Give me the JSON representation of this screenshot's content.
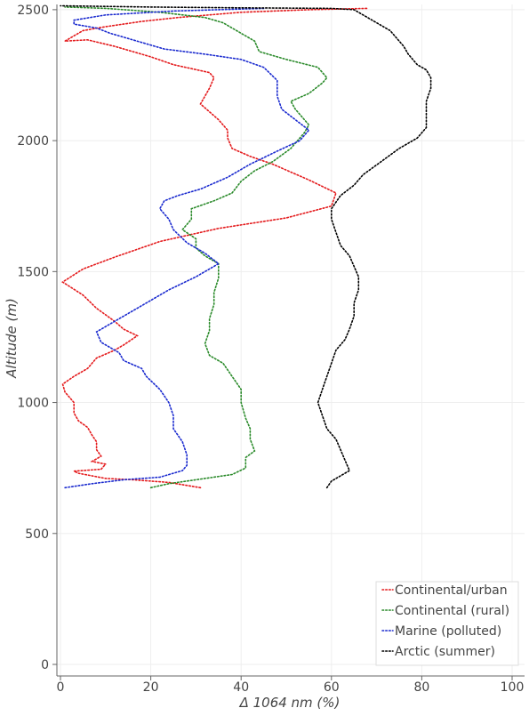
{
  "chart_data": {
    "type": "line",
    "title": "",
    "xlabel": "Δ 1064 nm (%)",
    "ylabel": "Altitude (m)",
    "xlim": [
      0,
      100
    ],
    "ylim": [
      0,
      2520
    ],
    "xticks": [
      "0",
      "20",
      "40",
      "60",
      "80",
      "100"
    ],
    "yticks": [
      "0",
      "500",
      "1000",
      "1500",
      "2000",
      "2500"
    ],
    "grid": true,
    "legend_position": "bottom-right",
    "series": [
      {
        "name": "Continental/urban",
        "color": "#e41a1c",
        "points": [
          [
            31,
            675
          ],
          [
            24,
            695
          ],
          [
            16,
            705
          ],
          [
            10,
            710
          ],
          [
            4,
            730
          ],
          [
            3,
            738
          ],
          [
            9,
            745
          ],
          [
            10,
            765
          ],
          [
            7,
            775
          ],
          [
            9,
            795
          ],
          [
            8,
            820
          ],
          [
            8,
            850
          ],
          [
            7,
            875
          ],
          [
            6,
            905
          ],
          [
            4,
            930
          ],
          [
            3,
            960
          ],
          [
            3,
            1000
          ],
          [
            1,
            1040
          ],
          [
            0.5,
            1070
          ],
          [
            3,
            1100
          ],
          [
            6,
            1130
          ],
          [
            8,
            1170
          ],
          [
            12,
            1200
          ],
          [
            14,
            1220
          ],
          [
            17,
            1255
          ],
          [
            14,
            1280
          ],
          [
            12,
            1310
          ],
          [
            8,
            1360
          ],
          [
            5,
            1410
          ],
          [
            0.5,
            1460
          ],
          [
            5,
            1510
          ],
          [
            12,
            1555
          ],
          [
            22,
            1615
          ],
          [
            35,
            1665
          ],
          [
            50,
            1705
          ],
          [
            60,
            1750
          ],
          [
            61,
            1800
          ],
          [
            55,
            1850
          ],
          [
            47,
            1910
          ],
          [
            42,
            1940
          ],
          [
            38,
            1970
          ],
          [
            37,
            2010
          ],
          [
            37,
            2040
          ],
          [
            35,
            2080
          ],
          [
            31,
            2140
          ],
          [
            33,
            2200
          ],
          [
            34,
            2240
          ],
          [
            33,
            2260
          ],
          [
            25,
            2290
          ],
          [
            20,
            2320
          ],
          [
            12,
            2360
          ],
          [
            6,
            2385
          ],
          [
            1,
            2380
          ],
          [
            3,
            2400
          ],
          [
            5,
            2420
          ],
          [
            10,
            2435
          ],
          [
            18,
            2455
          ],
          [
            26,
            2470
          ],
          [
            40,
            2490
          ],
          [
            55,
            2500
          ],
          [
            68,
            2505
          ]
        ]
      },
      {
        "name": "Continental (rural)",
        "color": "#2a8a2a",
        "points": [
          [
            20,
            675
          ],
          [
            24,
            690
          ],
          [
            30,
            705
          ],
          [
            38,
            725
          ],
          [
            41,
            750
          ],
          [
            41,
            790
          ],
          [
            43,
            815
          ],
          [
            42,
            860
          ],
          [
            42,
            900
          ],
          [
            41,
            940
          ],
          [
            40,
            1000
          ],
          [
            40,
            1050
          ],
          [
            38,
            1100
          ],
          [
            36,
            1150
          ],
          [
            33,
            1180
          ],
          [
            32,
            1225
          ],
          [
            33,
            1275
          ],
          [
            33,
            1320
          ],
          [
            34,
            1375
          ],
          [
            34,
            1420
          ],
          [
            35,
            1475
          ],
          [
            35,
            1530
          ],
          [
            32,
            1560
          ],
          [
            30,
            1590
          ],
          [
            30,
            1625
          ],
          [
            27,
            1660
          ],
          [
            29,
            1700
          ],
          [
            29,
            1740
          ],
          [
            34,
            1770
          ],
          [
            38,
            1800
          ],
          [
            40,
            1845
          ],
          [
            43,
            1885
          ],
          [
            47,
            1920
          ],
          [
            51,
            1970
          ],
          [
            54,
            2030
          ],
          [
            55,
            2060
          ],
          [
            52,
            2120
          ],
          [
            51,
            2150
          ],
          [
            55,
            2180
          ],
          [
            58,
            2220
          ],
          [
            59,
            2240
          ],
          [
            57,
            2280
          ],
          [
            50,
            2310
          ],
          [
            44,
            2340
          ],
          [
            43,
            2380
          ],
          [
            40,
            2410
          ],
          [
            36,
            2450
          ],
          [
            32,
            2470
          ],
          [
            22,
            2490
          ],
          [
            10,
            2505
          ],
          [
            1,
            2510
          ]
        ]
      },
      {
        "name": "Marine (polluted)",
        "color": "#1a2acf",
        "points": [
          [
            1,
            675
          ],
          [
            7,
            690
          ],
          [
            14,
            705
          ],
          [
            22,
            715
          ],
          [
            27,
            740
          ],
          [
            28,
            760
          ],
          [
            28,
            800
          ],
          [
            27,
            850
          ],
          [
            25,
            900
          ],
          [
            25,
            950
          ],
          [
            24,
            1000
          ],
          [
            22,
            1050
          ],
          [
            19,
            1100
          ],
          [
            18,
            1130
          ],
          [
            14,
            1160
          ],
          [
            13,
            1190
          ],
          [
            9,
            1230
          ],
          [
            8,
            1270
          ],
          [
            11,
            1300
          ],
          [
            14,
            1330
          ],
          [
            19,
            1380
          ],
          [
            24,
            1430
          ],
          [
            30,
            1480
          ],
          [
            33,
            1510
          ],
          [
            35,
            1530
          ],
          [
            32,
            1570
          ],
          [
            28,
            1610
          ],
          [
            25,
            1660
          ],
          [
            24,
            1700
          ],
          [
            22,
            1740
          ],
          [
            23,
            1770
          ],
          [
            26,
            1790
          ],
          [
            31,
            1815
          ],
          [
            37,
            1860
          ],
          [
            42,
            1910
          ],
          [
            48,
            1960
          ],
          [
            53,
            2000
          ],
          [
            55,
            2040
          ],
          [
            52,
            2080
          ],
          [
            49,
            2120
          ],
          [
            48,
            2170
          ],
          [
            48,
            2230
          ],
          [
            45,
            2280
          ],
          [
            40,
            2310
          ],
          [
            32,
            2330
          ],
          [
            23,
            2350
          ],
          [
            16,
            2385
          ],
          [
            11,
            2410
          ],
          [
            8,
            2430
          ],
          [
            3,
            2445
          ],
          [
            3,
            2460
          ],
          [
            10,
            2480
          ],
          [
            25,
            2495
          ],
          [
            45,
            2505
          ]
        ]
      },
      {
        "name": "Arctic (summer)",
        "color": "#000000",
        "points": [
          [
            59,
            675
          ],
          [
            60,
            700
          ],
          [
            62,
            720
          ],
          [
            64,
            740
          ],
          [
            63,
            780
          ],
          [
            62,
            820
          ],
          [
            61,
            860
          ],
          [
            59,
            900
          ],
          [
            58,
            950
          ],
          [
            57,
            1000
          ],
          [
            58,
            1050
          ],
          [
            59,
            1100
          ],
          [
            60,
            1150
          ],
          [
            61,
            1200
          ],
          [
            63,
            1240
          ],
          [
            64,
            1280
          ],
          [
            65,
            1330
          ],
          [
            65,
            1380
          ],
          [
            66,
            1430
          ],
          [
            66,
            1480
          ],
          [
            65,
            1520
          ],
          [
            64,
            1560
          ],
          [
            62,
            1600
          ],
          [
            61,
            1650
          ],
          [
            60,
            1700
          ],
          [
            60,
            1740
          ],
          [
            62,
            1790
          ],
          [
            65,
            1830
          ],
          [
            67,
            1870
          ],
          [
            71,
            1920
          ],
          [
            75,
            1970
          ],
          [
            79,
            2010
          ],
          [
            81,
            2050
          ],
          [
            81,
            2100
          ],
          [
            81,
            2150
          ],
          [
            82,
            2200
          ],
          [
            82,
            2240
          ],
          [
            81,
            2270
          ],
          [
            79,
            2290
          ],
          [
            77,
            2330
          ],
          [
            76,
            2360
          ],
          [
            75,
            2380
          ],
          [
            73,
            2420
          ],
          [
            70,
            2450
          ],
          [
            67,
            2480
          ],
          [
            65,
            2500
          ],
          [
            60,
            2505
          ],
          [
            40,
            2507
          ],
          [
            20,
            2510
          ],
          [
            0,
            2515
          ]
        ]
      }
    ]
  }
}
